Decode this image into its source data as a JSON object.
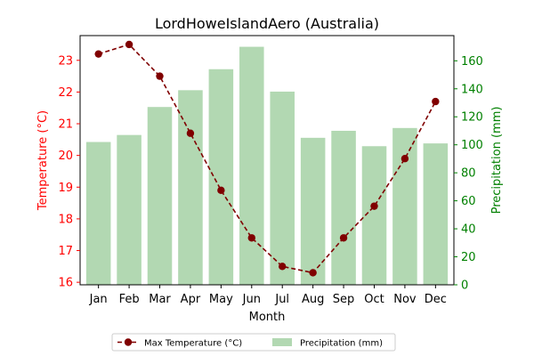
{
  "chart_data": {
    "type": "bar",
    "title": "LordHoweIslandAero (Australia)",
    "xlabel": "Month",
    "ylabel_left": "Temperature (°C)",
    "ylabel_right": "Precipitation (mm)",
    "categories": [
      "Jan",
      "Feb",
      "Mar",
      "Apr",
      "May",
      "Jun",
      "Jul",
      "Aug",
      "Sep",
      "Oct",
      "Nov",
      "Dec"
    ],
    "series": [
      {
        "name": "Max Temperature (°C)",
        "type": "line",
        "axis": "left",
        "color": "#800000",
        "values": [
          23.2,
          23.5,
          22.5,
          20.7,
          18.9,
          17.4,
          16.5,
          16.3,
          17.4,
          18.4,
          19.9,
          21.7
        ]
      },
      {
        "name": "Precipitation (mm)",
        "type": "bar",
        "axis": "right",
        "color": "#b2d8b2",
        "values": [
          102,
          107,
          127,
          139,
          154,
          170,
          138,
          105,
          110,
          99,
          112,
          101
        ]
      }
    ],
    "ylim_left": [
      15.92,
      23.78
    ],
    "ylim_right": [
      0,
      178
    ],
    "yticks_left": [
      16,
      17,
      18,
      19,
      20,
      21,
      22,
      23
    ],
    "yticks_right": [
      0,
      20,
      40,
      60,
      80,
      100,
      120,
      140,
      160
    ],
    "left_axis_color": "#ff0000",
    "right_axis_color": "#008000",
    "grid": false,
    "legend_position": "bottom-center"
  }
}
